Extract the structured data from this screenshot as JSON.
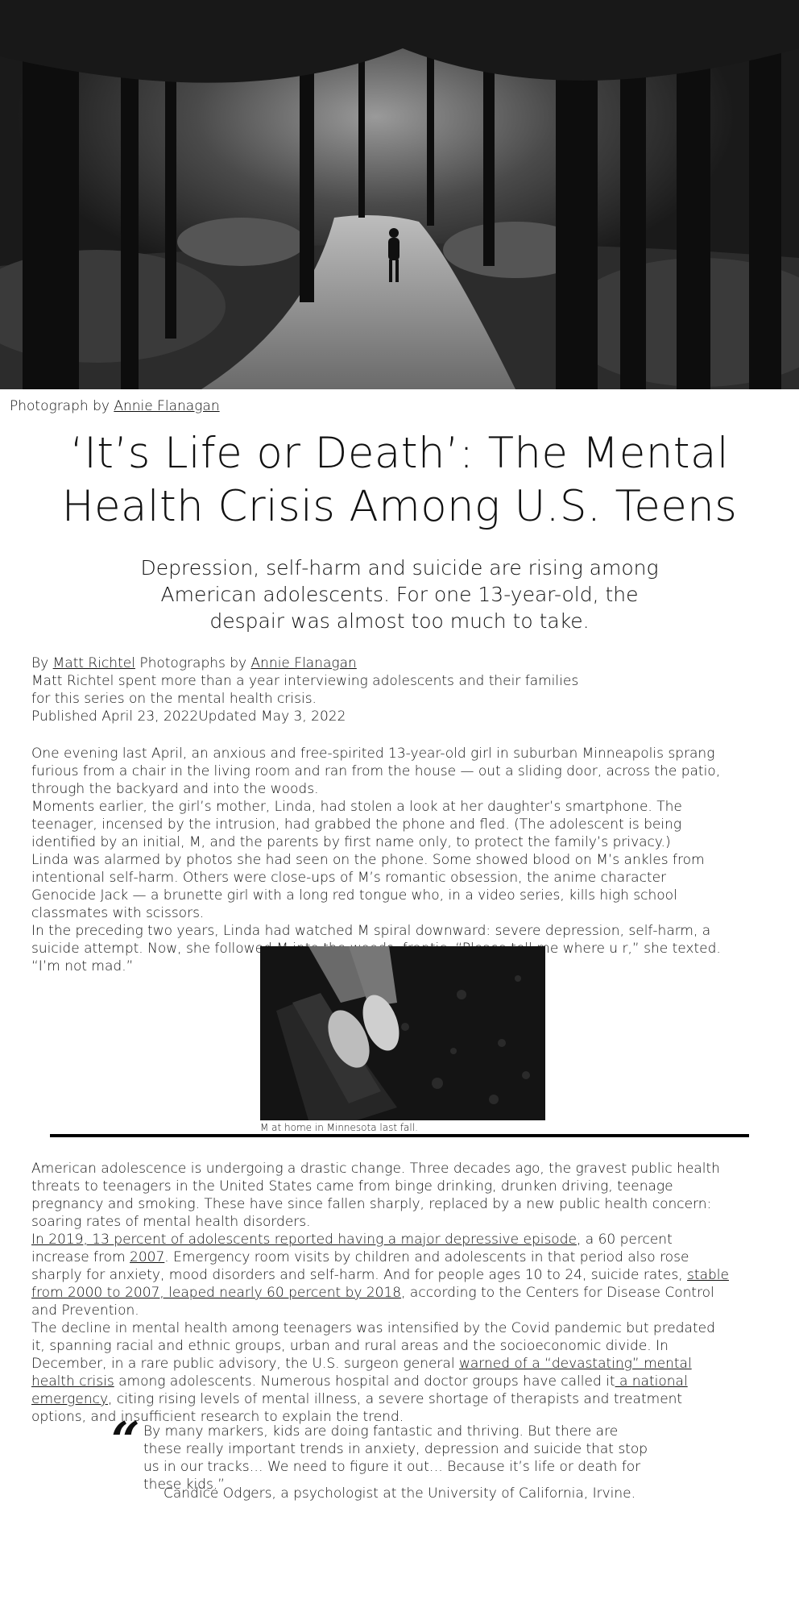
{
  "hero": {
    "alt_icon": "forest-path-photo"
  },
  "credit": {
    "prefix": "Photograph by ",
    "author": "Annie Flanagan"
  },
  "headline": "‘It’s Life or Death’: The Mental Health Crisis Among U.S. Teens",
  "dek": "Depression, self-harm and suicide are rising among American adolescents. For one 13-year-old, the despair was almost too much to take.",
  "byline": {
    "by": "By ",
    "author": "Matt Richtel",
    "photos_prefix": " Photographs by ",
    "photographer": "Annie Flanagan",
    "note": "Matt Richtel spent more than a year interviewing adolescents and their families for this series on the mental health crisis.",
    "published": "Published April 23, 2022",
    "updated": "Updated May 3, 2022"
  },
  "block1": [
    "One evening last April, an anxious and free-spirited 13-year-old girl in suburban Minneapolis sprang furious from a chair in the living room and ran from the house — out a sliding door, across the patio, through the backyard and into the woods.",
    "Moments earlier, the girl’s mother, Linda, had stolen a look at her daughter’s smartphone. The teenager, incensed by the intrusion, had grabbed the phone and fled. (The adolescent is being identified by an initial, M, and the parents by first name only, to protect the family’s privacy.)",
    "Linda was alarmed by photos she had seen on the phone. Some showed blood on M’s ankles from intentional self-harm. Others were close-ups of M’s romantic obsession, the anime character Genocide Jack — a brunette girl with a long red tongue who, in a video series, kills high school classmates with scissors.",
    "In the preceding two years, Linda had watched M spiral downward: severe depression, self-harm, a suicide attempt. Now, she followed M into the woods, frantic. “Please tell me where u r,” she texted. “I’m not mad.”"
  ],
  "inline_photo": {
    "caption": "M at home in Minnesota last fall."
  },
  "block2": {
    "p1": "American adolescence is undergoing a drastic change. Three decades ago, the gravest public health threats to teenagers in the United States came from binge drinking, drunken driving, teenage pregnancy and smoking. These have since fallen sharply, replaced by a new public health concern: soaring rates of mental health disorders.",
    "p2_link1": "In 2019, 13 percent of adolescents reported having a major depressive episode",
    "p2_mid1": ", a 60 percent increase from ",
    "p2_link2": "2007",
    "p2_mid2": ". Emergency room visits by children and adolescents in that period also rose sharply for anxiety, mood disorders and self-harm. And for people ages 10 to 24, suicide rates, ",
    "p2_link3": "stable from 2000 to 2007, leaped nearly 60 percent by 2018",
    "p2_end": ", according to the Centers for Disease Control and Prevention.",
    "p3_start": "The decline in mental health among teenagers was intensified by the Covid pandemic but predated it, spanning racial and ethnic groups, urban and rural areas and the socioeconomic divide. In December, in a rare public advisory, the U.S. surgeon general ",
    "p3_link1": "warned of a “devastating” mental health crisis",
    "p3_mid": " among adolescents. Numerous hospital and doctor groups have called it",
    "p3_link2": " a national emergency",
    "p3_end": ", citing rising levels of mental illness, a severe shortage of therapists and treatment options, and insufficient research to explain the trend."
  },
  "pullquote": {
    "mark": "“",
    "text": "By many markers, kids are doing fantastic and thriving. But there are these really important trends in anxiety, depression and suicide that stop us in our tracks… We need to figure it out… Because it’s life or death for these kids.”",
    "attribution": "Candice Odgers, a psychologist at the University of California, Irvine."
  }
}
